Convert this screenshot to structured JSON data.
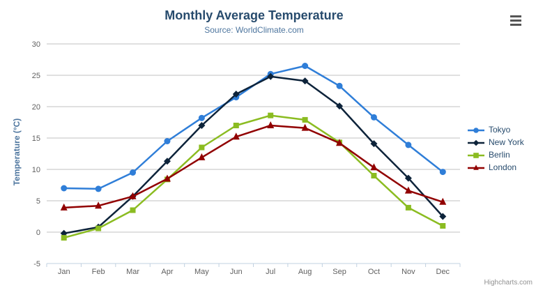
{
  "chart_data": {
    "type": "line",
    "title": "Monthly Average Temperature",
    "subtitle": "Source: WorldClimate.com",
    "categories": [
      "Jan",
      "Feb",
      "Mar",
      "Apr",
      "May",
      "Jun",
      "Jul",
      "Aug",
      "Sep",
      "Oct",
      "Nov",
      "Dec"
    ],
    "xlabel": "",
    "ylabel": "Temperature (°C)",
    "ylim": [
      -5,
      30
    ],
    "ytick_interval": 5,
    "grid": true,
    "legend_position": "right",
    "series": [
      {
        "name": "Tokyo",
        "color": "#2f7ed8",
        "marker": "circle",
        "values": [
          7.0,
          6.9,
          9.5,
          14.5,
          18.2,
          21.5,
          25.2,
          26.5,
          23.3,
          18.3,
          13.9,
          9.6
        ]
      },
      {
        "name": "New York",
        "color": "#0d233a",
        "marker": "diamond",
        "values": [
          -0.2,
          0.8,
          5.7,
          11.3,
          17.0,
          22.0,
          24.8,
          24.1,
          20.1,
          14.1,
          8.6,
          2.5
        ]
      },
      {
        "name": "Berlin",
        "color": "#8bbc21",
        "marker": "square",
        "values": [
          -0.9,
          0.6,
          3.5,
          8.4,
          13.5,
          17.0,
          18.6,
          17.9,
          14.3,
          9.0,
          3.9,
          1.0
        ]
      },
      {
        "name": "London",
        "color": "#910000",
        "marker": "triangle",
        "values": [
          3.9,
          4.2,
          5.7,
          8.5,
          11.9,
          15.2,
          17.0,
          16.6,
          14.2,
          10.3,
          6.6,
          4.8
        ]
      }
    ],
    "credit": "Highcharts.com",
    "colors": {
      "title": "#274b6d",
      "subtitle": "#4d759e",
      "axis_title": "#4d759e",
      "axis_labels": "#606060",
      "gridline": "#C0C0C0",
      "axis_line": "#C0D0E0",
      "legend_text": "#274b6d",
      "credit_text": "#909090"
    }
  }
}
